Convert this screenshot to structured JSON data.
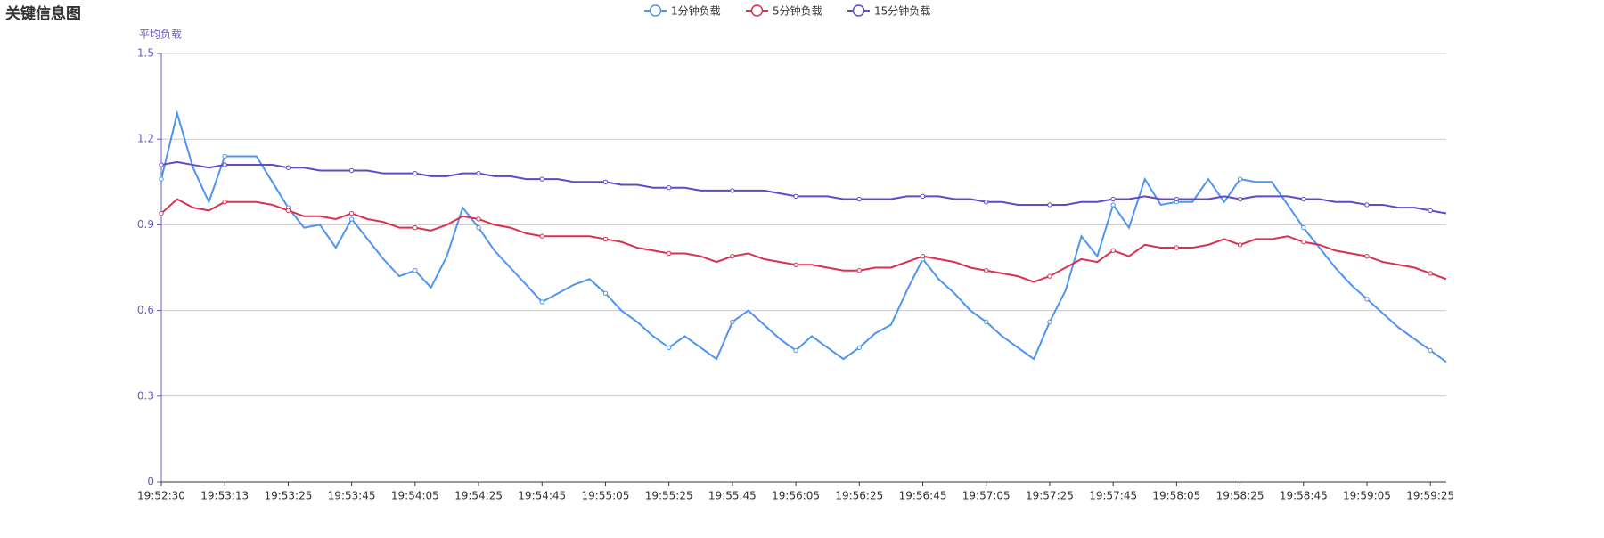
{
  "chart_data": {
    "type": "line",
    "title": "关键信息图",
    "y_label": "平均负载",
    "legend": "top",
    "grid": true,
    "ylim": [
      0,
      1.5
    ],
    "yticks": [
      0,
      0.3,
      0.6,
      0.9,
      1.2,
      1.5
    ],
    "categories": [
      "19:52:30",
      null,
      null,
      null,
      "19:53:13",
      null,
      null,
      null,
      "19:53:25",
      null,
      null,
      null,
      "19:53:45",
      null,
      null,
      null,
      "19:54:05",
      null,
      null,
      null,
      "19:54:25",
      null,
      null,
      null,
      "19:54:45",
      null,
      null,
      null,
      "19:55:05",
      null,
      null,
      null,
      "19:55:25",
      null,
      null,
      null,
      "19:55:45",
      null,
      null,
      null,
      "19:56:05",
      null,
      null,
      null,
      "19:56:25",
      null,
      null,
      null,
      "19:56:45",
      null,
      null,
      null,
      "19:57:05",
      null,
      null,
      null,
      "19:57:25",
      null,
      null,
      null,
      "19:57:45",
      null,
      null,
      null,
      "19:58:05",
      null,
      null,
      null,
      "19:58:25",
      null,
      null,
      null,
      "19:58:45",
      null,
      null,
      null,
      "19:59:05",
      null,
      null,
      null,
      "19:59:25",
      null
    ],
    "series": [
      {
        "name": "1分钟负载",
        "color": "#4f94f0",
        "values": [
          1.06,
          1.29,
          1.1,
          0.98,
          1.14,
          1.14,
          1.14,
          1.05,
          0.96,
          0.89,
          0.9,
          0.82,
          0.92,
          0.85,
          0.78,
          0.72,
          0.74,
          0.68,
          0.79,
          0.96,
          0.89,
          0.81,
          0.75,
          0.69,
          0.63,
          0.66,
          0.69,
          0.71,
          0.66,
          0.6,
          0.56,
          0.51,
          0.47,
          0.51,
          0.47,
          0.43,
          0.56,
          0.6,
          0.55,
          0.5,
          0.46,
          0.51,
          0.47,
          0.43,
          0.47,
          0.52,
          0.55,
          0.67,
          0.78,
          0.71,
          0.66,
          0.6,
          0.56,
          0.51,
          0.47,
          0.43,
          0.56,
          0.67,
          0.86,
          0.79,
          0.97,
          0.89,
          1.06,
          0.97,
          0.98,
          0.98,
          1.06,
          0.98,
          1.06,
          1.05,
          1.05,
          0.97,
          0.89,
          0.82,
          0.75,
          0.69,
          0.64,
          0.59,
          0.54,
          0.5,
          0.46,
          0.42
        ]
      },
      {
        "name": "5分钟负载",
        "color": "#d9304f",
        "values": [
          0.94,
          0.99,
          0.96,
          0.95,
          0.98,
          0.98,
          0.98,
          0.97,
          0.95,
          0.93,
          0.93,
          0.92,
          0.94,
          0.92,
          0.91,
          0.89,
          0.89,
          0.88,
          0.9,
          0.93,
          0.92,
          0.9,
          0.89,
          0.87,
          0.86,
          0.86,
          0.86,
          0.86,
          0.85,
          0.84,
          0.82,
          0.81,
          0.8,
          0.8,
          0.79,
          0.77,
          0.79,
          0.8,
          0.78,
          0.77,
          0.76,
          0.76,
          0.75,
          0.74,
          0.74,
          0.75,
          0.75,
          0.77,
          0.79,
          0.78,
          0.77,
          0.75,
          0.74,
          0.73,
          0.72,
          0.7,
          0.72,
          0.75,
          0.78,
          0.77,
          0.81,
          0.79,
          0.83,
          0.82,
          0.82,
          0.82,
          0.83,
          0.85,
          0.83,
          0.85,
          0.85,
          0.86,
          0.84,
          0.83,
          0.81,
          0.8,
          0.79,
          0.77,
          0.76,
          0.75,
          0.73,
          0.71
        ]
      },
      {
        "name": "15分钟负载",
        "color": "#6647c6",
        "values": [
          1.11,
          1.12,
          1.11,
          1.1,
          1.11,
          1.11,
          1.11,
          1.11,
          1.1,
          1.1,
          1.09,
          1.09,
          1.09,
          1.09,
          1.08,
          1.08,
          1.08,
          1.07,
          1.07,
          1.08,
          1.08,
          1.07,
          1.07,
          1.06,
          1.06,
          1.06,
          1.05,
          1.05,
          1.05,
          1.04,
          1.04,
          1.03,
          1.03,
          1.03,
          1.02,
          1.02,
          1.02,
          1.02,
          1.02,
          1.01,
          1.0,
          1.0,
          1.0,
          0.99,
          0.99,
          0.99,
          0.99,
          1.0,
          1.0,
          1.0,
          0.99,
          0.99,
          0.98,
          0.98,
          0.97,
          0.97,
          0.97,
          0.97,
          0.98,
          0.98,
          0.99,
          0.99,
          1.0,
          0.99,
          0.99,
          0.99,
          0.99,
          1.0,
          0.99,
          1.0,
          1.0,
          1.0,
          0.99,
          0.99,
          0.98,
          0.98,
          0.97,
          0.97,
          0.96,
          0.96,
          0.95,
          0.94
        ]
      }
    ]
  }
}
